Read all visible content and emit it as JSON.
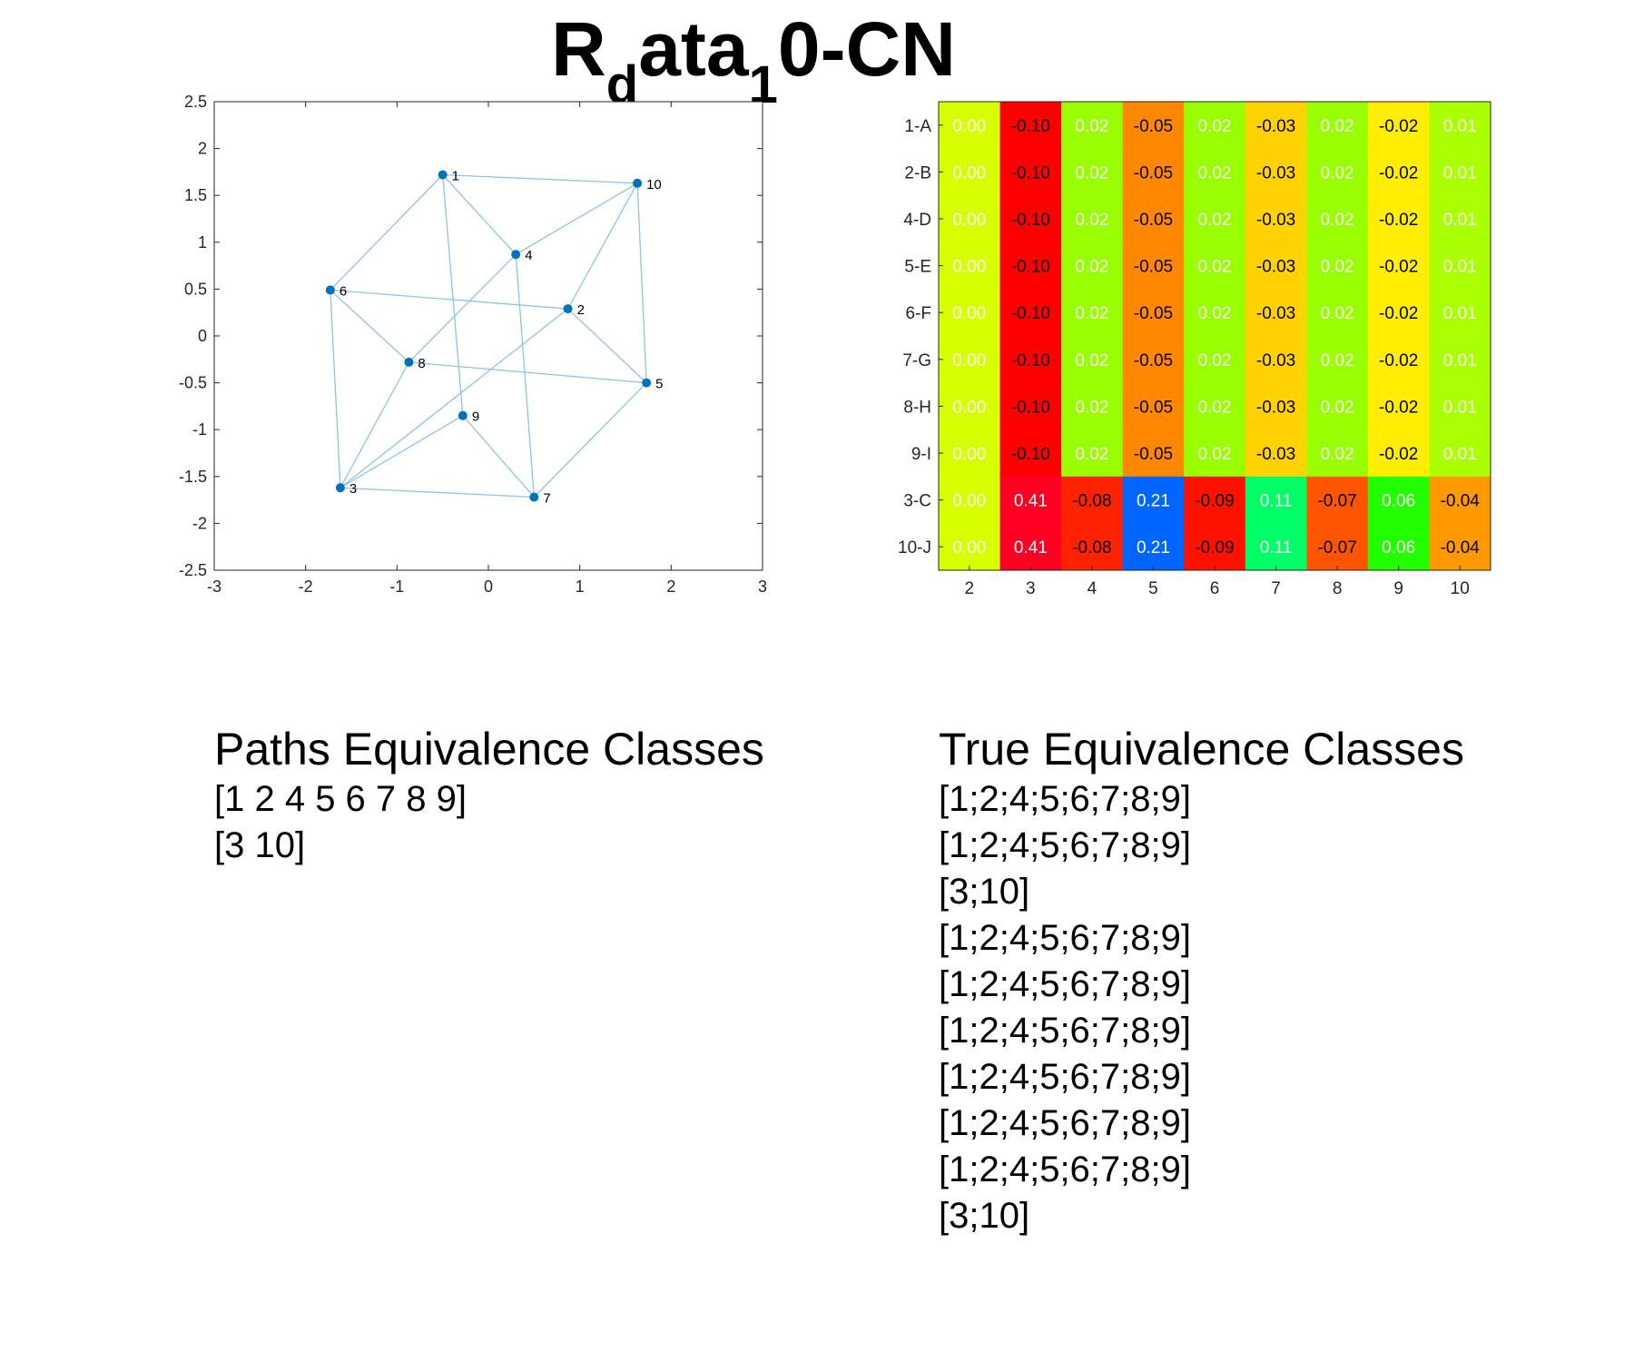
{
  "page": {
    "title_main": "R",
    "title_sub1": "d",
    "title_mid": "ata",
    "title_sub2": "1",
    "title_end": "0-CN"
  },
  "chart_data": [
    {
      "type": "scatter",
      "title": "",
      "xlabel": "",
      "ylabel": "",
      "xlim": [
        -3,
        3
      ],
      "ylim": [
        -2.5,
        2.5
      ],
      "xticks": [
        -3,
        -2,
        -1,
        0,
        1,
        2,
        3
      ],
      "yticks": [
        -2.5,
        -2,
        -1.5,
        -1,
        -0.5,
        0,
        0.5,
        1,
        1.5,
        2,
        2.5
      ],
      "grid": false,
      "point_color": "#0072bd",
      "edge_color": "#8ec3e6",
      "points": [
        {
          "label": "1",
          "x": -0.5,
          "y": 1.72
        },
        {
          "label": "2",
          "x": 0.87,
          "y": 0.29
        },
        {
          "label": "3",
          "x": -1.62,
          "y": -1.62
        },
        {
          "label": "4",
          "x": 0.3,
          "y": 0.87
        },
        {
          "label": "5",
          "x": 1.73,
          "y": -0.5
        },
        {
          "label": "6",
          "x": -1.73,
          "y": 0.49
        },
        {
          "label": "7",
          "x": 0.5,
          "y": -1.72
        },
        {
          "label": "8",
          "x": -0.87,
          "y": -0.28
        },
        {
          "label": "9",
          "x": -0.28,
          "y": -0.85
        },
        {
          "label": "10",
          "x": 1.63,
          "y": 1.63
        }
      ],
      "edges": [
        [
          1,
          10
        ],
        [
          1,
          6
        ],
        [
          1,
          4
        ],
        [
          1,
          9
        ],
        [
          10,
          4
        ],
        [
          10,
          2
        ],
        [
          10,
          5
        ],
        [
          6,
          2
        ],
        [
          6,
          3
        ],
        [
          6,
          8
        ],
        [
          4,
          8
        ],
        [
          4,
          7
        ],
        [
          2,
          3
        ],
        [
          2,
          5
        ],
        [
          8,
          5
        ],
        [
          8,
          3
        ],
        [
          9,
          3
        ],
        [
          9,
          7
        ],
        [
          3,
          7
        ],
        [
          7,
          5
        ]
      ]
    },
    {
      "type": "heatmap",
      "title": "",
      "rows": [
        "1-A",
        "2-B",
        "4-D",
        "5-E",
        "6-F",
        "7-G",
        "8-H",
        "9-I",
        "3-C",
        "10-J"
      ],
      "columns": [
        "2",
        "3",
        "4",
        "5",
        "6",
        "7",
        "8",
        "9",
        "10"
      ],
      "values": [
        [
          0.0,
          -0.1,
          0.02,
          -0.05,
          0.02,
          -0.03,
          0.02,
          -0.02,
          0.01
        ],
        [
          0.0,
          -0.1,
          0.02,
          -0.05,
          0.02,
          -0.03,
          0.02,
          -0.02,
          0.01
        ],
        [
          0.0,
          -0.1,
          0.02,
          -0.05,
          0.02,
          -0.03,
          0.02,
          -0.02,
          0.01
        ],
        [
          0.0,
          -0.1,
          0.02,
          -0.05,
          0.02,
          -0.03,
          0.02,
          -0.02,
          0.01
        ],
        [
          0.0,
          -0.1,
          0.02,
          -0.05,
          0.02,
          -0.03,
          0.02,
          -0.02,
          0.01
        ],
        [
          0.0,
          -0.1,
          0.02,
          -0.05,
          0.02,
          -0.03,
          0.02,
          -0.02,
          0.01
        ],
        [
          0.0,
          -0.1,
          0.02,
          -0.05,
          0.02,
          -0.03,
          0.02,
          -0.02,
          0.01
        ],
        [
          0.0,
          -0.1,
          0.02,
          -0.05,
          0.02,
          -0.03,
          0.02,
          -0.02,
          0.01
        ],
        [
          0.0,
          0.41,
          -0.08,
          0.21,
          -0.09,
          0.11,
          -0.07,
          0.06,
          -0.04
        ],
        [
          0.0,
          0.41,
          -0.08,
          0.21,
          -0.09,
          0.11,
          -0.07,
          0.06,
          -0.04
        ]
      ],
      "labels": [
        [
          "0.00",
          "-0.10",
          "0.02",
          "-0.05",
          "0.02",
          "-0.03",
          "0.02",
          "-0.02",
          "0.01"
        ],
        [
          "0.00",
          "-0.10",
          "0.02",
          "-0.05",
          "0.02",
          "-0.03",
          "0.02",
          "-0.02",
          "0.01"
        ],
        [
          "0.00",
          "-0.10",
          "0.02",
          "-0.05",
          "0.02",
          "-0.03",
          "0.02",
          "-0.02",
          "0.01"
        ],
        [
          "0.00",
          "-0.10",
          "0.02",
          "-0.05",
          "0.02",
          "-0.03",
          "0.02",
          "-0.02",
          "0.01"
        ],
        [
          "0.00",
          "-0.10",
          "0.02",
          "-0.05",
          "0.02",
          "-0.03",
          "0.02",
          "-0.02",
          "0.01"
        ],
        [
          "0.00",
          "-0.10",
          "0.02",
          "-0.05",
          "0.02",
          "-0.03",
          "0.02",
          "-0.02",
          "0.01"
        ],
        [
          "0.00",
          "-0.10",
          "0.02",
          "-0.05",
          "0.02",
          "-0.03",
          "0.02",
          "-0.02",
          "0.01"
        ],
        [
          "0.00",
          "-0.10",
          "0.02",
          "-0.05",
          "0.02",
          "-0.03",
          "0.02",
          "-0.02",
          "0.01"
        ],
        [
          "0.00",
          "0.41",
          "-0.08",
          "0.21",
          "-0.09",
          "0.11",
          "-0.07",
          "0.06",
          "-0.04"
        ],
        [
          "0.00",
          "0.41",
          "-0.08",
          "0.21",
          "-0.09",
          "0.11",
          "-0.07",
          "0.06",
          "-0.04"
        ]
      ],
      "colors": [
        [
          "#d7ff00",
          "#ff0000",
          "#99ff00",
          "#ff8800",
          "#99ff00",
          "#ffd200",
          "#99ff00",
          "#ffee00",
          "#aaff00"
        ],
        [
          "#d7ff00",
          "#ff0000",
          "#99ff00",
          "#ff8800",
          "#99ff00",
          "#ffd200",
          "#99ff00",
          "#ffee00",
          "#aaff00"
        ],
        [
          "#d7ff00",
          "#ff0000",
          "#99ff00",
          "#ff8800",
          "#99ff00",
          "#ffd200",
          "#99ff00",
          "#ffee00",
          "#aaff00"
        ],
        [
          "#d7ff00",
          "#ff0000",
          "#99ff00",
          "#ff8800",
          "#99ff00",
          "#ffd200",
          "#99ff00",
          "#ffee00",
          "#aaff00"
        ],
        [
          "#d7ff00",
          "#ff0000",
          "#99ff00",
          "#ff8800",
          "#99ff00",
          "#ffd200",
          "#99ff00",
          "#ffee00",
          "#aaff00"
        ],
        [
          "#d7ff00",
          "#ff0000",
          "#99ff00",
          "#ff8800",
          "#99ff00",
          "#ffd200",
          "#99ff00",
          "#ffee00",
          "#aaff00"
        ],
        [
          "#d7ff00",
          "#ff0000",
          "#99ff00",
          "#ff8800",
          "#99ff00",
          "#ffd200",
          "#99ff00",
          "#ffee00",
          "#aaff00"
        ],
        [
          "#d7ff00",
          "#ff0000",
          "#99ff00",
          "#ff8800",
          "#99ff00",
          "#ffd200",
          "#99ff00",
          "#ffee00",
          "#aaff00"
        ],
        [
          "#d7ff00",
          "#ff0022",
          "#ff2200",
          "#0066ff",
          "#ff1100",
          "#00ff66",
          "#ff5500",
          "#22ff00",
          "#ff9900"
        ],
        [
          "#d7ff00",
          "#ff0022",
          "#ff2200",
          "#0066ff",
          "#ff1100",
          "#00ff66",
          "#ff5500",
          "#22ff00",
          "#ff9900"
        ]
      ],
      "text_colors": [
        [
          "#ffffff",
          "#000000",
          "#ffffff",
          "#000000",
          "#ffffff",
          "#000000",
          "#ffffff",
          "#000000",
          "#ffffff"
        ],
        [
          "#ffffff",
          "#000000",
          "#ffffff",
          "#000000",
          "#ffffff",
          "#000000",
          "#ffffff",
          "#000000",
          "#ffffff"
        ],
        [
          "#ffffff",
          "#000000",
          "#ffffff",
          "#000000",
          "#ffffff",
          "#000000",
          "#ffffff",
          "#000000",
          "#ffffff"
        ],
        [
          "#ffffff",
          "#000000",
          "#ffffff",
          "#000000",
          "#ffffff",
          "#000000",
          "#ffffff",
          "#000000",
          "#ffffff"
        ],
        [
          "#ffffff",
          "#000000",
          "#ffffff",
          "#000000",
          "#ffffff",
          "#000000",
          "#ffffff",
          "#000000",
          "#ffffff"
        ],
        [
          "#ffffff",
          "#000000",
          "#ffffff",
          "#000000",
          "#ffffff",
          "#000000",
          "#ffffff",
          "#000000",
          "#ffffff"
        ],
        [
          "#ffffff",
          "#000000",
          "#ffffff",
          "#000000",
          "#ffffff",
          "#000000",
          "#ffffff",
          "#000000",
          "#ffffff"
        ],
        [
          "#ffffff",
          "#000000",
          "#ffffff",
          "#000000",
          "#ffffff",
          "#000000",
          "#ffffff",
          "#000000",
          "#ffffff"
        ],
        [
          "#ffffff",
          "#ffffff",
          "#000000",
          "#ffffff",
          "#000000",
          "#ffffff",
          "#000000",
          "#ffffff",
          "#000000"
        ],
        [
          "#ffffff",
          "#ffffff",
          "#000000",
          "#ffffff",
          "#000000",
          "#ffffff",
          "#000000",
          "#ffffff",
          "#000000"
        ]
      ]
    }
  ],
  "paths_classes": {
    "heading": "Paths Equivalence Classes",
    "items": [
      "[1 2 4 5 6 7 8 9]",
      "[3 10]"
    ]
  },
  "true_classes": {
    "heading": "True Equivalence Classes",
    "items": [
      "[1;2;4;5;6;7;8;9]",
      "[1;2;4;5;6;7;8;9]",
      "[3;10]",
      "[1;2;4;5;6;7;8;9]",
      "[1;2;4;5;6;7;8;9]",
      "[1;2;4;5;6;7;8;9]",
      "[1;2;4;5;6;7;8;9]",
      "[1;2;4;5;6;7;8;9]",
      "[1;2;4;5;6;7;8;9]",
      "[3;10]"
    ]
  }
}
